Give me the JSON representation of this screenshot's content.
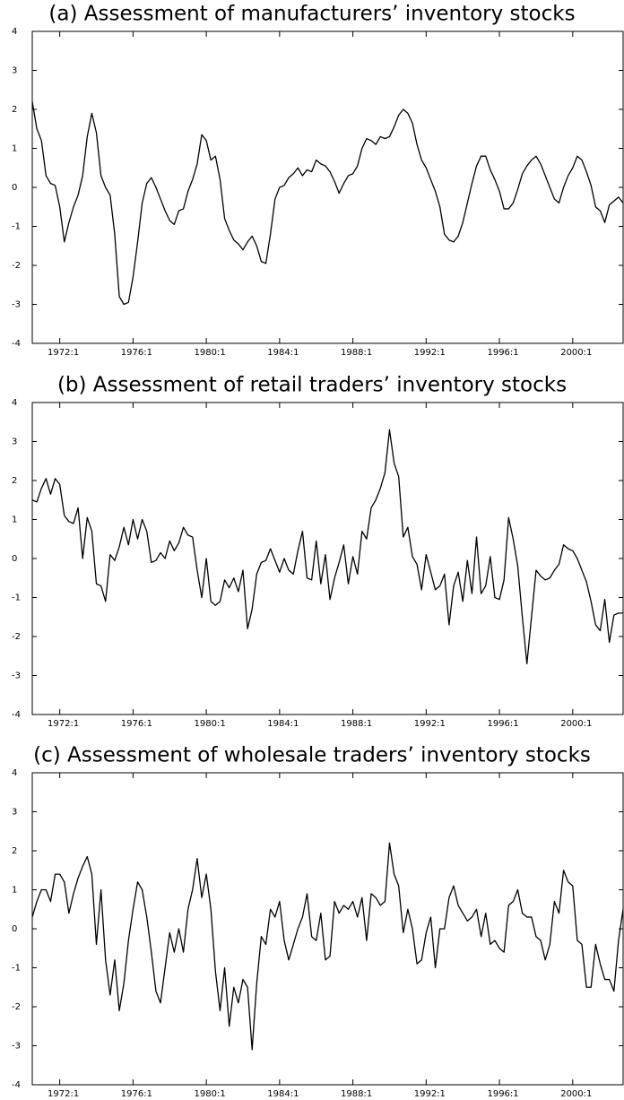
{
  "chart_data": [
    {
      "type": "line",
      "title": "(a) Assessment of manufacturers’ inventory stocks",
      "color": "#000000",
      "x": [
        1970.5,
        1970.75,
        1971,
        1971.25,
        1971.5,
        1971.75,
        1972,
        1972.25,
        1972.5,
        1972.75,
        1973,
        1973.25,
        1973.5,
        1973.75,
        1974,
        1974.25,
        1974.5,
        1974.75,
        1975,
        1975.25,
        1975.5,
        1975.75,
        1976,
        1976.25,
        1976.5,
        1976.75,
        1977,
        1977.25,
        1977.5,
        1977.75,
        1978,
        1978.25,
        1978.5,
        1978.75,
        1979,
        1979.25,
        1979.5,
        1979.75,
        1980,
        1980.25,
        1980.5,
        1980.75,
        1981,
        1981.25,
        1981.5,
        1981.75,
        1982,
        1982.25,
        1982.5,
        1982.75,
        1983,
        1983.25,
        1983.5,
        1983.75,
        1984,
        1984.25,
        1984.5,
        1984.75,
        1985,
        1985.25,
        1985.5,
        1985.75,
        1986,
        1986.25,
        1986.5,
        1986.75,
        1987,
        1987.25,
        1987.5,
        1987.75,
        1988,
        1988.25,
        1988.5,
        1988.75,
        1989,
        1989.25,
        1989.5,
        1989.75,
        1990,
        1990.25,
        1990.5,
        1990.75,
        1991,
        1991.25,
        1991.5,
        1991.75,
        1992,
        1992.25,
        1992.5,
        1992.75,
        1993,
        1993.25,
        1993.5,
        1993.75,
        1994,
        1994.25,
        1994.5,
        1994.75,
        1995,
        1995.25,
        1995.5,
        1995.75,
        1996,
        1996.25,
        1996.5,
        1996.75,
        1997,
        1997.25,
        1997.5,
        1997.75,
        1998,
        1998.25,
        1998.5,
        1998.75,
        1999,
        1999.25,
        1999.5,
        1999.75,
        2000,
        2000.25,
        2000.5,
        2000.75,
        2001,
        2001.25,
        2001.5,
        2001.75,
        2002,
        2002.25,
        2002.5,
        2002.75
      ],
      "values": [
        2.2,
        1.5,
        1.2,
        0.3,
        0.1,
        0.05,
        -0.5,
        -1.4,
        -0.9,
        -0.5,
        -0.2,
        0.3,
        1.3,
        1.9,
        1.4,
        0.3,
        0.0,
        -0.2,
        -1.2,
        -2.8,
        -3.0,
        -2.95,
        -2.3,
        -1.4,
        -0.4,
        0.1,
        0.25,
        0.0,
        -0.3,
        -0.6,
        -0.85,
        -0.95,
        -0.6,
        -0.55,
        -0.1,
        0.2,
        0.6,
        1.35,
        1.2,
        0.7,
        0.8,
        0.2,
        -0.8,
        -1.1,
        -1.35,
        -1.45,
        -1.6,
        -1.4,
        -1.25,
        -1.5,
        -1.9,
        -1.95,
        -1.2,
        -0.3,
        0.0,
        0.05,
        0.25,
        0.35,
        0.5,
        0.3,
        0.45,
        0.4,
        0.7,
        0.6,
        0.55,
        0.4,
        0.15,
        -0.15,
        0.1,
        0.3,
        0.35,
        0.55,
        1.0,
        1.25,
        1.2,
        1.1,
        1.3,
        1.25,
        1.3,
        1.55,
        1.85,
        2.0,
        1.9,
        1.65,
        1.1,
        0.7,
        0.5,
        0.2,
        -0.1,
        -0.5,
        -1.2,
        -1.35,
        -1.4,
        -1.25,
        -0.9,
        -0.4,
        0.1,
        0.55,
        0.8,
        0.8,
        0.45,
        0.2,
        -0.1,
        -0.55,
        -0.55,
        -0.4,
        -0.05,
        0.35,
        0.55,
        0.7,
        0.8,
        0.6,
        0.3,
        0.0,
        -0.3,
        -0.4,
        0.0,
        0.3,
        0.5,
        0.8,
        0.7,
        0.4,
        0.05,
        -0.5,
        -0.6,
        -0.9,
        -0.45,
        -0.35,
        -0.25,
        -0.4
      ],
      "xlim": [
        1970.5,
        2002.75
      ],
      "ylim": [
        -4,
        4
      ],
      "yticks": [
        -4,
        -3,
        -2,
        -1,
        0,
        1,
        2,
        3,
        4
      ],
      "xticks": [
        {
          "value": 1972,
          "label": "1972:1"
        },
        {
          "value": 1976,
          "label": "1976:1"
        },
        {
          "value": 1980,
          "label": "1980:1"
        },
        {
          "value": 1984,
          "label": "1984:1"
        },
        {
          "value": 1988,
          "label": "1988:1"
        },
        {
          "value": 1992,
          "label": "1992:1"
        },
        {
          "value": 1996,
          "label": "1996:1"
        },
        {
          "value": 2000,
          "label": "2000:1"
        }
      ]
    },
    {
      "type": "line",
      "title": "(b) Assessment of retail traders’ inventory stocks",
      "color": "#000000",
      "x": [
        1970.5,
        1970.75,
        1971,
        1971.25,
        1971.5,
        1971.75,
        1972,
        1972.25,
        1972.5,
        1972.75,
        1973,
        1973.25,
        1973.5,
        1973.75,
        1974,
        1974.25,
        1974.5,
        1974.75,
        1975,
        1975.25,
        1975.5,
        1975.75,
        1976,
        1976.25,
        1976.5,
        1976.75,
        1977,
        1977.25,
        1977.5,
        1977.75,
        1978,
        1978.25,
        1978.5,
        1978.75,
        1979,
        1979.25,
        1979.5,
        1979.75,
        1980,
        1980.25,
        1980.5,
        1980.75,
        1981,
        1981.25,
        1981.5,
        1981.75,
        1982,
        1982.25,
        1982.5,
        1982.75,
        1983,
        1983.25,
        1983.5,
        1983.75,
        1984,
        1984.25,
        1984.5,
        1984.75,
        1985,
        1985.25,
        1985.5,
        1985.75,
        1986,
        1986.25,
        1986.5,
        1986.75,
        1987,
        1987.25,
        1987.5,
        1987.75,
        1988,
        1988.25,
        1988.5,
        1988.75,
        1989,
        1989.25,
        1989.5,
        1989.75,
        1990,
        1990.25,
        1990.5,
        1990.75,
        1991,
        1991.25,
        1991.5,
        1991.75,
        1992,
        1992.25,
        1992.5,
        1992.75,
        1993,
        1993.25,
        1993.5,
        1993.75,
        1994,
        1994.25,
        1994.5,
        1994.75,
        1995,
        1995.25,
        1995.5,
        1995.75,
        1996,
        1996.25,
        1996.5,
        1996.75,
        1997,
        1997.25,
        1997.5,
        1997.75,
        1998,
        1998.25,
        1998.5,
        1998.75,
        1999,
        1999.25,
        1999.5,
        1999.75,
        2000,
        2000.25,
        2000.5,
        2000.75,
        2001,
        2001.25,
        2001.5,
        2001.75,
        2002,
        2002.25,
        2002.5,
        2002.75
      ],
      "values": [
        1.5,
        1.45,
        1.8,
        2.05,
        1.65,
        2.05,
        1.9,
        1.1,
        0.95,
        0.9,
        1.3,
        0.0,
        1.05,
        0.7,
        -0.65,
        -0.7,
        -1.1,
        0.1,
        -0.05,
        0.3,
        0.8,
        0.35,
        1.0,
        0.5,
        1.0,
        0.7,
        -0.1,
        -0.05,
        0.15,
        0.0,
        0.45,
        0.2,
        0.4,
        0.8,
        0.6,
        0.55,
        -0.3,
        -1.0,
        0.0,
        -1.1,
        -1.2,
        -1.1,
        -0.55,
        -0.75,
        -0.5,
        -0.85,
        -0.3,
        -1.8,
        -1.3,
        -0.4,
        -0.1,
        -0.05,
        0.25,
        -0.05,
        -0.35,
        0.0,
        -0.3,
        -0.4,
        0.2,
        0.7,
        -0.5,
        -0.55,
        0.45,
        -0.65,
        0.1,
        -1.05,
        -0.5,
        -0.1,
        0.35,
        -0.65,
        0.05,
        -0.4,
        0.7,
        0.5,
        1.3,
        1.5,
        1.8,
        2.2,
        3.3,
        2.45,
        2.1,
        0.55,
        0.8,
        0.05,
        -0.15,
        -0.8,
        0.1,
        -0.35,
        -0.8,
        -0.7,
        -0.4,
        -1.7,
        -0.7,
        -0.35,
        -1.1,
        -0.05,
        -0.9,
        0.55,
        -0.9,
        -0.7,
        0.05,
        -1.0,
        -1.05,
        -0.55,
        1.05,
        0.5,
        -0.2,
        -1.5,
        -2.7,
        -1.5,
        -0.3,
        -0.45,
        -0.55,
        -0.5,
        -0.3,
        -0.15,
        0.35,
        0.25,
        0.2,
        0.0,
        -0.3,
        -0.6,
        -1.1,
        -1.7,
        -1.85,
        -1.05,
        -2.15,
        -1.45,
        -1.4,
        -1.4
      ],
      "xlim": [
        1970.5,
        2002.75
      ],
      "ylim": [
        -4,
        4
      ],
      "yticks": [
        -4,
        -3,
        -2,
        -1,
        0,
        1,
        2,
        3,
        4
      ],
      "xticks": [
        {
          "value": 1972,
          "label": "1972:1"
        },
        {
          "value": 1976,
          "label": "1976:1"
        },
        {
          "value": 1980,
          "label": "1980:1"
        },
        {
          "value": 1984,
          "label": "1984:1"
        },
        {
          "value": 1988,
          "label": "1988:1"
        },
        {
          "value": 1992,
          "label": "1992:1"
        },
        {
          "value": 1996,
          "label": "1996:1"
        },
        {
          "value": 2000,
          "label": "2000:1"
        }
      ]
    },
    {
      "type": "line",
      "title": "(c) Assessment of wholesale traders’ inventory stocks",
      "color": "#000000",
      "x": [
        1970.5,
        1970.75,
        1971,
        1971.25,
        1971.5,
        1971.75,
        1972,
        1972.25,
        1972.5,
        1972.75,
        1973,
        1973.25,
        1973.5,
        1973.75,
        1974,
        1974.25,
        1974.5,
        1974.75,
        1975,
        1975.25,
        1975.5,
        1975.75,
        1976,
        1976.25,
        1976.5,
        1976.75,
        1977,
        1977.25,
        1977.5,
        1977.75,
        1978,
        1978.25,
        1978.5,
        1978.75,
        1979,
        1979.25,
        1979.5,
        1979.75,
        1980,
        1980.25,
        1980.5,
        1980.75,
        1981,
        1981.25,
        1981.5,
        1981.75,
        1982,
        1982.25,
        1982.5,
        1982.75,
        1983,
        1983.25,
        1983.5,
        1983.75,
        1984,
        1984.25,
        1984.5,
        1984.75,
        1985,
        1985.25,
        1985.5,
        1985.75,
        1986,
        1986.25,
        1986.5,
        1986.75,
        1987,
        1987.25,
        1987.5,
        1987.75,
        1988,
        1988.25,
        1988.5,
        1988.75,
        1989,
        1989.25,
        1989.5,
        1989.75,
        1990,
        1990.25,
        1990.5,
        1990.75,
        1991,
        1991.25,
        1991.5,
        1991.75,
        1992,
        1992.25,
        1992.5,
        1992.75,
        1993,
        1993.25,
        1993.5,
        1993.75,
        1994,
        1994.25,
        1994.5,
        1994.75,
        1995,
        1995.25,
        1995.5,
        1995.75,
        1996,
        1996.25,
        1996.5,
        1996.75,
        1997,
        1997.25,
        1997.5,
        1997.75,
        1998,
        1998.25,
        1998.5,
        1998.75,
        1999,
        1999.25,
        1999.5,
        1999.75,
        2000,
        2000.25,
        2000.5,
        2000.75,
        2001,
        2001.25,
        2001.5,
        2001.75,
        2002,
        2002.25,
        2002.5,
        2002.75
      ],
      "values": [
        0.3,
        0.7,
        1.0,
        1.0,
        0.7,
        1.4,
        1.4,
        1.2,
        0.4,
        0.9,
        1.3,
        1.6,
        1.85,
        1.4,
        -0.4,
        1.0,
        -0.8,
        -1.7,
        -0.8,
        -2.1,
        -1.4,
        -0.3,
        0.5,
        1.2,
        1.0,
        0.3,
        -0.6,
        -1.6,
        -1.9,
        -1.0,
        -0.1,
        -0.6,
        0.0,
        -0.6,
        0.5,
        1.0,
        1.8,
        0.8,
        1.4,
        0.5,
        -1.1,
        -2.1,
        -1.0,
        -2.5,
        -1.5,
        -1.9,
        -1.3,
        -1.5,
        -3.1,
        -1.4,
        -0.2,
        -0.4,
        0.5,
        0.3,
        0.7,
        -0.3,
        -0.8,
        -0.4,
        0.0,
        0.3,
        0.9,
        -0.2,
        -0.3,
        0.4,
        -0.8,
        -0.7,
        0.7,
        0.4,
        0.6,
        0.5,
        0.7,
        0.3,
        0.8,
        -0.3,
        0.9,
        0.8,
        0.6,
        0.7,
        2.2,
        1.4,
        1.1,
        -0.1,
        0.5,
        0.0,
        -0.9,
        -0.8,
        -0.1,
        0.3,
        -1.0,
        0.0,
        0.0,
        0.8,
        1.1,
        0.6,
        0.4,
        0.2,
        0.3,
        0.5,
        -0.2,
        0.4,
        -0.4,
        -0.3,
        -0.5,
        -0.6,
        0.6,
        0.7,
        1.0,
        0.4,
        0.3,
        0.3,
        -0.2,
        -0.3,
        -0.8,
        -0.4,
        0.7,
        0.4,
        1.5,
        1.2,
        1.1,
        -0.3,
        -0.4,
        -1.5,
        -1.5,
        -0.4,
        -0.9,
        -1.3,
        -1.3,
        -1.6,
        -0.3,
        0.5
      ],
      "xlim": [
        1970.5,
        2002.75
      ],
      "ylim": [
        -4,
        4
      ],
      "yticks": [
        -4,
        -3,
        -2,
        -1,
        0,
        1,
        2,
        3,
        4
      ],
      "xticks": [
        {
          "value": 1972,
          "label": "1972:1"
        },
        {
          "value": 1976,
          "label": "1976:1"
        },
        {
          "value": 1980,
          "label": "1980:1"
        },
        {
          "value": 1984,
          "label": "1984:1"
        },
        {
          "value": 1988,
          "label": "1988:1"
        },
        {
          "value": 1992,
          "label": "1992:1"
        },
        {
          "value": 1996,
          "label": "1996:1"
        },
        {
          "value": 2000,
          "label": "2000:1"
        }
      ]
    }
  ]
}
